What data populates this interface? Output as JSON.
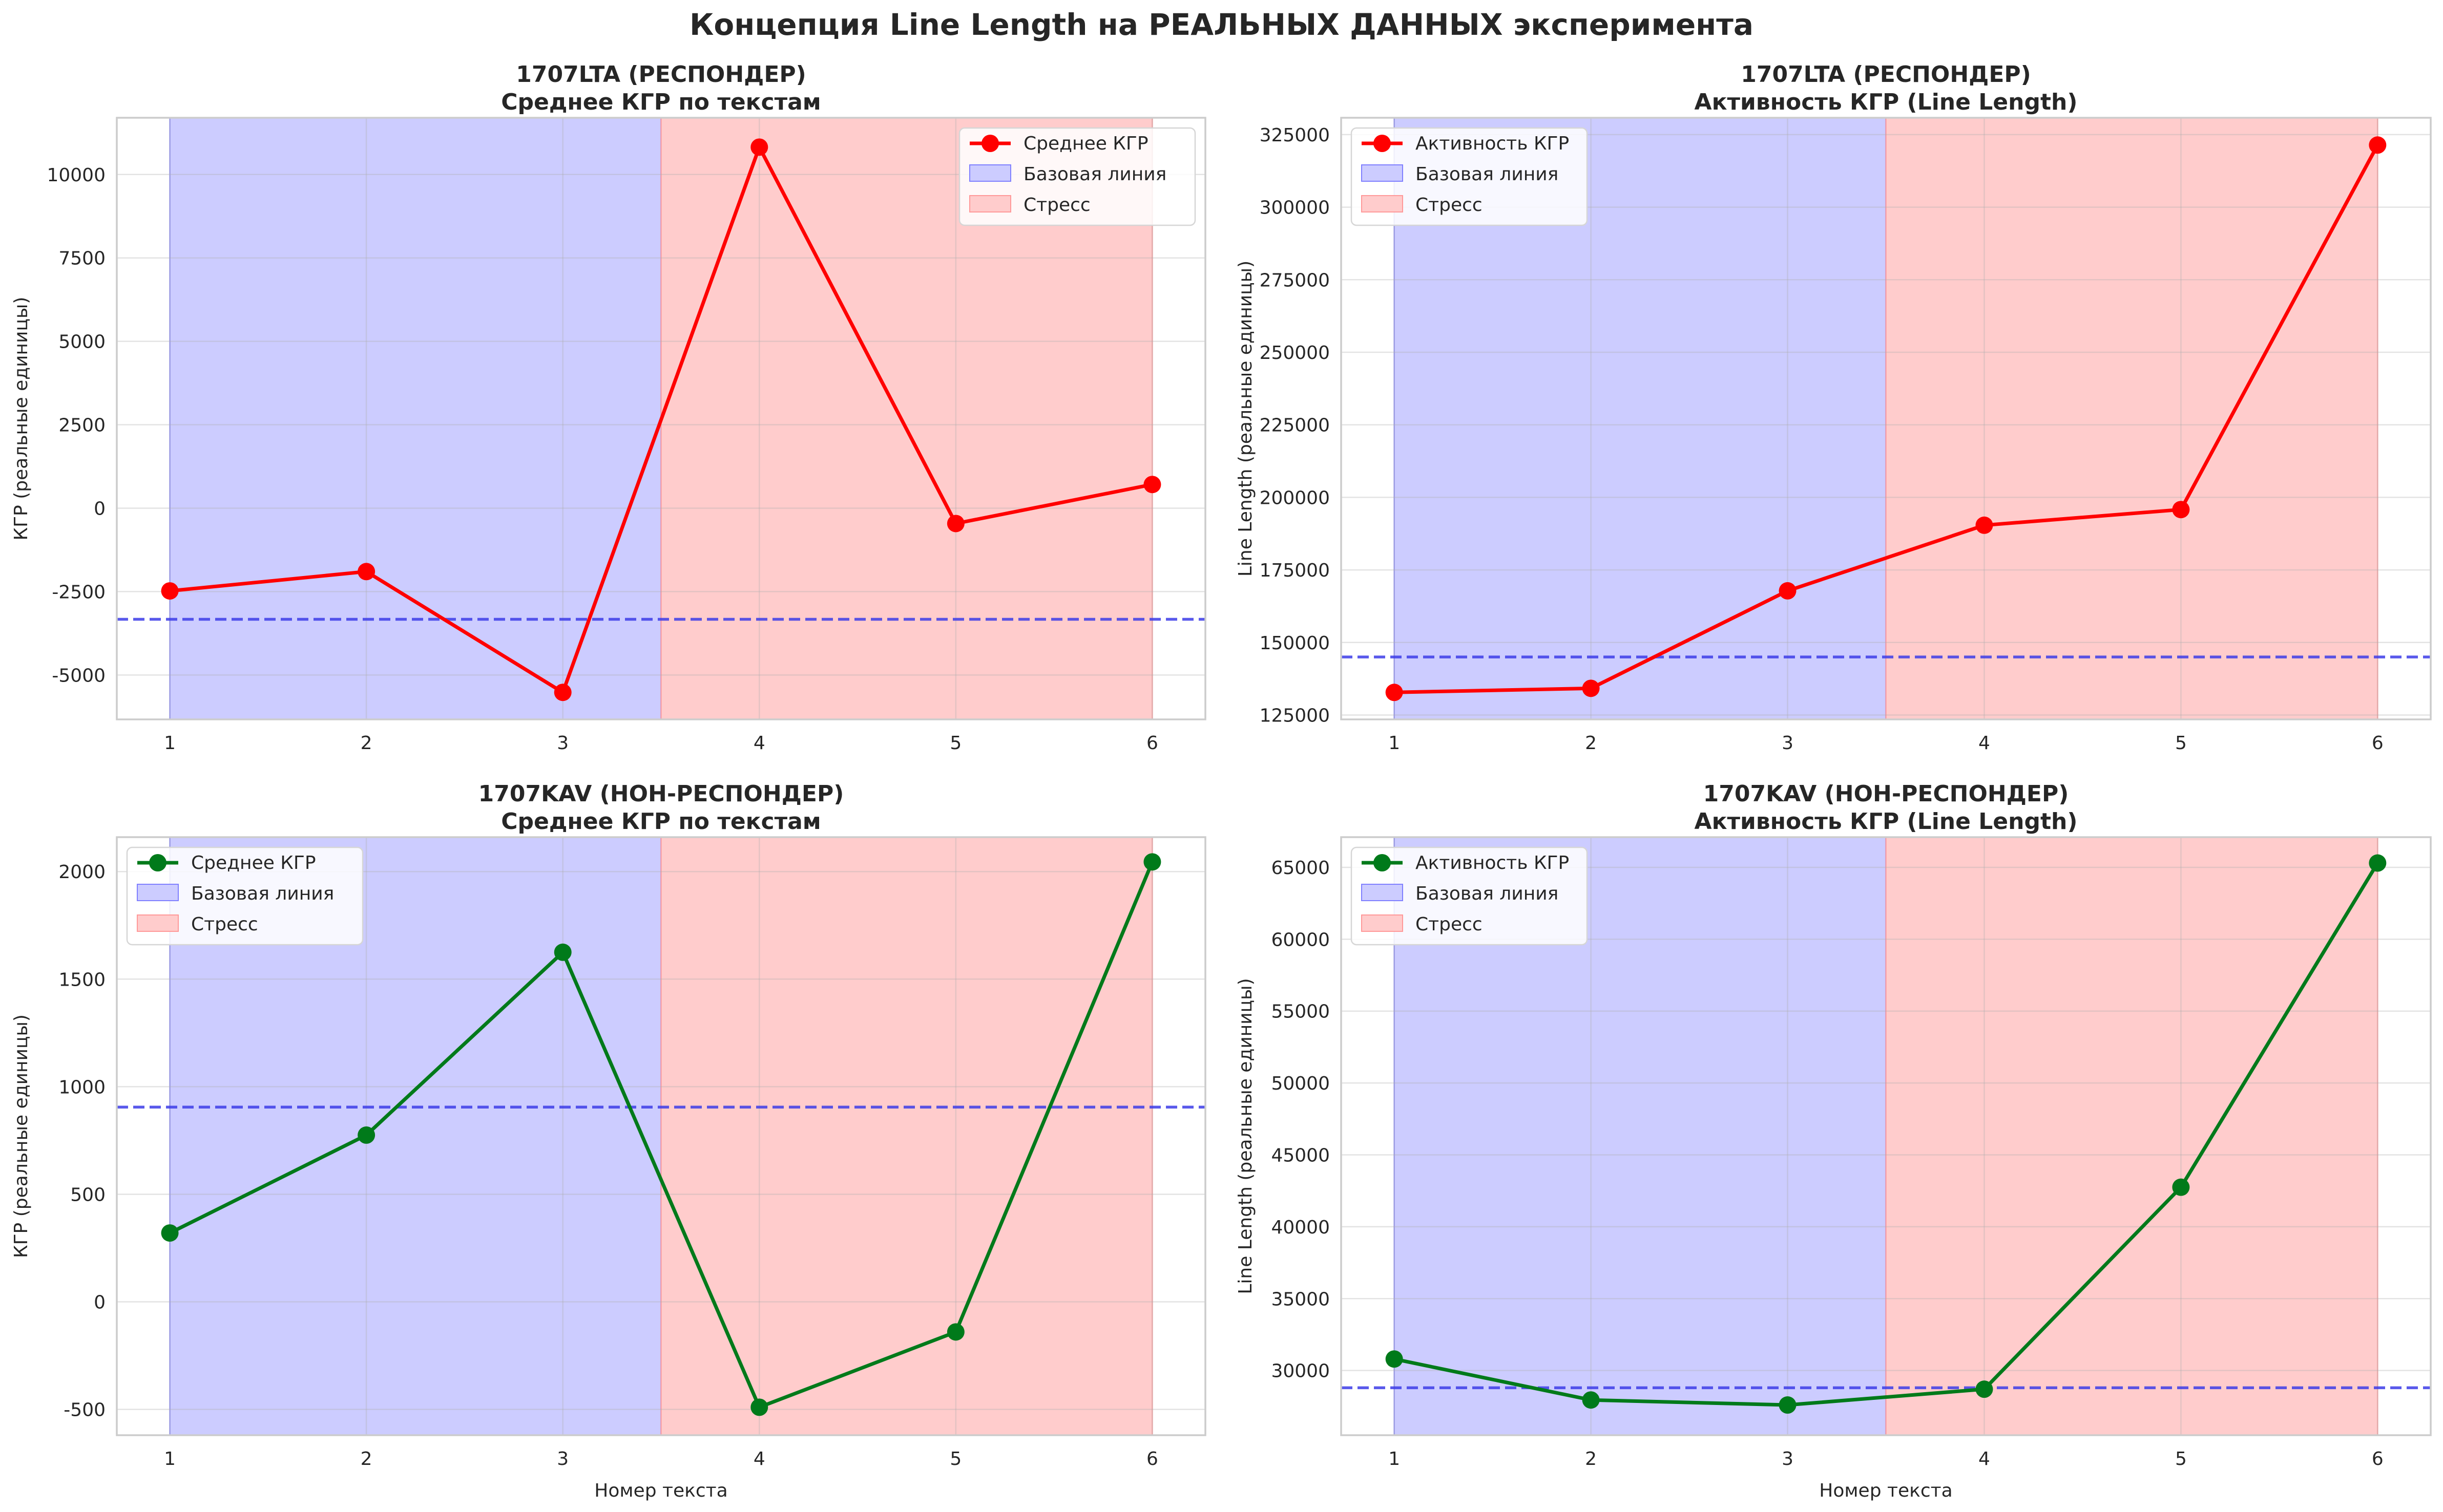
{
  "suptitle": "Концепция Line Length на РЕАЛЬНЫХ ДАННЫХ эксперимента",
  "colors": {
    "baseline_span": "#ccccff",
    "stress_span": "#ffcccc",
    "baseline_line": "#3d3de8",
    "responder": "#ff0000",
    "non_responder": "#007a1a"
  },
  "chart_data": [
    {
      "type": "line",
      "title": "1707LTA (РЕСПОНДЕР)",
      "subtitle": "Среднее КГР по текстам",
      "xlabel": "",
      "ylabel": "КГР (реальные единицы)",
      "x": [
        1,
        2,
        3,
        4,
        5,
        6
      ],
      "series": [
        {
          "name": "Среднее КГР",
          "values": [
            -2480,
            -1900,
            -5520,
            10820,
            -460,
            710
          ],
          "color": "#ff0000"
        }
      ],
      "baseline_value": -3330,
      "spans": [
        {
          "name": "Базовая линия",
          "from": 1,
          "to": 3.5
        },
        {
          "name": "Стресс",
          "from": 3.5,
          "to": 6
        }
      ],
      "xlim": [
        0.73,
        6.27
      ],
      "ylim": [
        -6330,
        11700
      ],
      "yticks": [
        -5000,
        -2500,
        0,
        2500,
        5000,
        7500,
        10000
      ],
      "ytick_labels": [
        "-5000",
        "-2500",
        "0",
        "2500",
        "5000",
        "7500",
        "10000"
      ],
      "xtick_labels": [
        "1",
        "2",
        "3",
        "4",
        "5",
        "6"
      ],
      "legend": {
        "position": "top-right",
        "entries": [
          "Среднее КГР",
          "Базовая линия",
          "Стресс"
        ]
      },
      "grid": true
    },
    {
      "type": "line",
      "title": "1707LTA (РЕСПОНДЕР)",
      "subtitle": "Активность КГР (Line Length)",
      "xlabel": "",
      "ylabel": "Line Length (реальные единицы)",
      "x": [
        1,
        2,
        3,
        4,
        5,
        6
      ],
      "series": [
        {
          "name": "Активность КГР",
          "values": [
            132800,
            134200,
            167800,
            190400,
            195800,
            321400
          ],
          "color": "#ff0000"
        }
      ],
      "baseline_value": 145000,
      "spans": [
        {
          "name": "Базовая линия",
          "from": 1,
          "to": 3.5
        },
        {
          "name": "Стресс",
          "from": 3.5,
          "to": 6
        }
      ],
      "xlim": [
        0.73,
        6.27
      ],
      "ylim": [
        123500,
        330800
      ],
      "yticks": [
        125000,
        150000,
        175000,
        200000,
        225000,
        250000,
        275000,
        300000,
        325000
      ],
      "ytick_labels": [
        "125000",
        "150000",
        "175000",
        "200000",
        "225000",
        "250000",
        "275000",
        "300000",
        "325000"
      ],
      "xtick_labels": [
        "1",
        "2",
        "3",
        "4",
        "5",
        "6"
      ],
      "legend": {
        "position": "top-left",
        "entries": [
          "Активность КГР",
          "Базовая линия",
          "Стресс"
        ]
      },
      "grid": true
    },
    {
      "type": "line",
      "title": "1707KAV (НОН-РЕСПОНДЕР)",
      "subtitle": "Среднее КГР по текстам",
      "xlabel": "Номер текста",
      "ylabel": "КГР (реальные единицы)",
      "x": [
        1,
        2,
        3,
        4,
        5,
        6
      ],
      "series": [
        {
          "name": "Среднее КГР",
          "values": [
            320,
            775,
            1625,
            -490,
            -140,
            2045
          ],
          "color": "#007a1a"
        }
      ],
      "baseline_value": 905,
      "spans": [
        {
          "name": "Базовая линия",
          "from": 1,
          "to": 3.5
        },
        {
          "name": "Стресс",
          "from": 3.5,
          "to": 6
        }
      ],
      "xlim": [
        0.73,
        6.27
      ],
      "ylim": [
        -620,
        2160
      ],
      "yticks": [
        -500,
        0,
        500,
        1000,
        1500,
        2000
      ],
      "ytick_labels": [
        "-500",
        "0",
        "500",
        "1000",
        "1500",
        "2000"
      ],
      "xtick_labels": [
        "1",
        "2",
        "3",
        "4",
        "5",
        "6"
      ],
      "legend": {
        "position": "top-left",
        "entries": [
          "Среднее КГР",
          "Базовая линия",
          "Стресс"
        ]
      },
      "grid": true
    },
    {
      "type": "line",
      "title": "1707KAV (НОН-РЕСПОНДЕР)",
      "subtitle": "Активность КГР (Line Length)",
      "xlabel": "Номер текста",
      "ylabel": "Line Length (реальные единицы)",
      "x": [
        1,
        2,
        3,
        4,
        5,
        6
      ],
      "series": [
        {
          "name": "Активность КГР",
          "values": [
            30800,
            27950,
            27600,
            28700,
            42750,
            65300
          ],
          "color": "#007a1a"
        }
      ],
      "baseline_value": 28800,
      "spans": [
        {
          "name": "Базовая линия",
          "from": 1,
          "to": 3.5
        },
        {
          "name": "Стресс",
          "from": 3.5,
          "to": 6
        }
      ],
      "xlim": [
        0.73,
        6.27
      ],
      "ylim": [
        25500,
        67100
      ],
      "yticks": [
        30000,
        35000,
        40000,
        45000,
        50000,
        55000,
        60000,
        65000
      ],
      "ytick_labels": [
        "30000",
        "35000",
        "40000",
        "45000",
        "50000",
        "55000",
        "60000",
        "65000"
      ],
      "xtick_labels": [
        "1",
        "2",
        "3",
        "4",
        "5",
        "6"
      ],
      "legend": {
        "position": "top-left",
        "entries": [
          "Активность КГР",
          "Базовая линия",
          "Стресс"
        ]
      },
      "grid": true
    }
  ]
}
